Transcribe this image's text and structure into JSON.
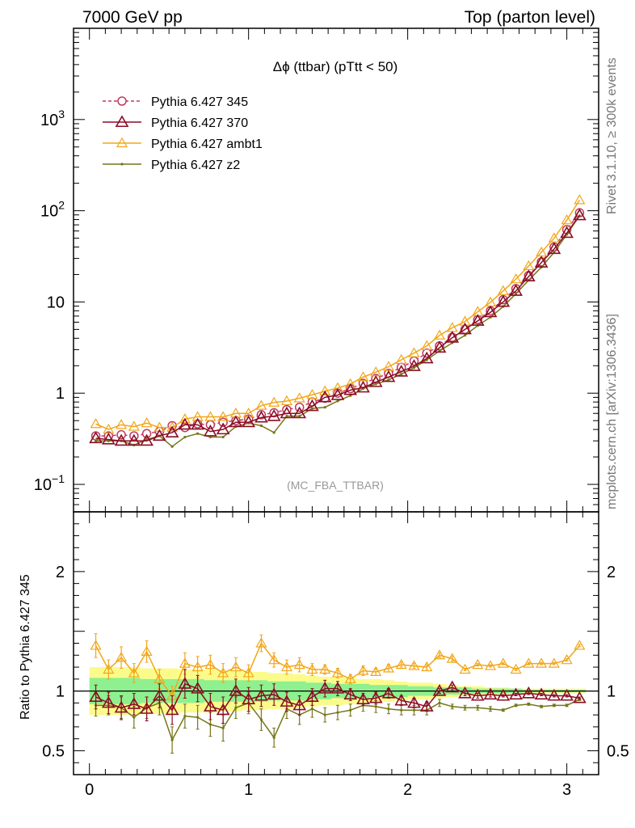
{
  "header": {
    "left": "7000 GeV pp",
    "right": "Top (parton level)"
  },
  "side_labels": {
    "rivet": "Rivet 3.1.10, ≥ 300k events",
    "mcplots": "mcplots.cern.ch [arXiv:1306.3436]"
  },
  "analysis_tag": "(MC_FBA_TTBAR)",
  "colors": {
    "p345": "#c0395f",
    "p370": "#8b0d24",
    "ambt1": "#f2a618",
    "z2": "#76761a",
    "band_yellow": "#fbfb8c",
    "band_green": "#8ef08e"
  },
  "chart_data": [
    {
      "type": "line",
      "title": "Δϕ (ttbar) (pTtt < 50)",
      "xlim": [
        -0.1,
        3.2
      ],
      "ylim": [
        0.05,
        10000
      ],
      "yscale": "log",
      "yticks": [
        {
          "value": 0.1,
          "label": "10",
          "exp": "−1"
        },
        {
          "value": 1,
          "label": "1",
          "exp": ""
        },
        {
          "value": 10,
          "label": "10",
          "exp": ""
        },
        {
          "value": 100,
          "label": "10",
          "exp": "2"
        },
        {
          "value": 1000,
          "label": "10",
          "exp": "3"
        }
      ],
      "legend_position": "top-left",
      "x": [
        0.04,
        0.12,
        0.2,
        0.28,
        0.36,
        0.44,
        0.52,
        0.6,
        0.68,
        0.76,
        0.84,
        0.92,
        1.0,
        1.08,
        1.16,
        1.24,
        1.32,
        1.4,
        1.48,
        1.56,
        1.64,
        1.72,
        1.8,
        1.88,
        1.96,
        2.04,
        2.12,
        2.2,
        2.28,
        2.36,
        2.44,
        2.52,
        2.6,
        2.68,
        2.76,
        2.84,
        2.92,
        3.0,
        3.08
      ],
      "series": [
        {
          "name": "Pythia 6.427 345",
          "key": "p345",
          "marker": "circle",
          "dashed": true,
          "values": [
            0.34,
            0.34,
            0.35,
            0.34,
            0.36,
            0.38,
            0.44,
            0.42,
            0.46,
            0.45,
            0.48,
            0.5,
            0.52,
            0.58,
            0.61,
            0.66,
            0.7,
            0.8,
            0.88,
            1.0,
            1.12,
            1.28,
            1.45,
            1.65,
            1.92,
            2.25,
            2.75,
            3.3,
            4.1,
            5.0,
            6.4,
            8.0,
            10.6,
            14.0,
            19.5,
            27.5,
            40.0,
            62.0,
            95.0
          ]
        },
        {
          "name": "Pythia 6.427 370",
          "key": "p370",
          "marker": "triangle",
          "dashed": false,
          "values": [
            0.32,
            0.31,
            0.3,
            0.3,
            0.3,
            0.34,
            0.37,
            0.45,
            0.45,
            0.38,
            0.4,
            0.48,
            0.48,
            0.54,
            0.56,
            0.6,
            0.6,
            0.72,
            0.9,
            0.95,
            1.08,
            1.15,
            1.32,
            1.5,
            1.72,
            1.98,
            2.4,
            3.15,
            4.05,
            5.0,
            6.2,
            7.7,
            10.0,
            13.2,
            19.0,
            27.0,
            38.0,
            57.0,
            89.0
          ]
        },
        {
          "name": "Pythia 6.427 ambt1",
          "key": "ambt1",
          "marker": "triangle-open",
          "dashed": false,
          "values": [
            0.46,
            0.4,
            0.45,
            0.43,
            0.47,
            0.42,
            0.42,
            0.52,
            0.55,
            0.55,
            0.55,
            0.6,
            0.6,
            0.73,
            0.79,
            0.82,
            0.88,
            0.96,
            1.05,
            1.14,
            1.26,
            1.5,
            1.7,
            1.95,
            2.32,
            2.75,
            3.3,
            4.3,
            5.2,
            6.1,
            7.8,
            9.9,
            13.2,
            17.8,
            24.8,
            35.0,
            50.0,
            79.0,
            131.0
          ]
        },
        {
          "name": "Pythia 6.427 z2",
          "key": "z2",
          "marker": "dot",
          "dashed": false,
          "values": [
            0.3,
            0.3,
            0.3,
            0.27,
            0.31,
            0.34,
            0.26,
            0.33,
            0.36,
            0.33,
            0.33,
            0.43,
            0.47,
            0.44,
            0.37,
            0.56,
            0.56,
            0.68,
            0.7,
            0.82,
            0.94,
            1.12,
            1.26,
            1.4,
            1.62,
            1.9,
            2.32,
            2.9,
            3.56,
            4.3,
            5.5,
            6.8,
            8.9,
            12.3,
            17.3,
            24.0,
            35.0,
            55.0,
            88.0
          ]
        }
      ]
    },
    {
      "type": "line",
      "title": "",
      "ylabel": "Ratio to Pythia 6.427 345",
      "xlim": [
        -0.1,
        3.2
      ],
      "ylim": [
        0.3,
        2.5
      ],
      "xticks": [
        0,
        1,
        2,
        3
      ],
      "yticks": [
        0.5,
        1,
        2
      ],
      "x": [
        0.04,
        0.12,
        0.2,
        0.28,
        0.36,
        0.44,
        0.52,
        0.6,
        0.68,
        0.76,
        0.84,
        0.92,
        1.0,
        1.08,
        1.16,
        1.24,
        1.32,
        1.4,
        1.48,
        1.56,
        1.64,
        1.72,
        1.8,
        1.88,
        1.96,
        2.04,
        2.12,
        2.2,
        2.28,
        2.36,
        2.44,
        2.52,
        2.6,
        2.68,
        2.76,
        2.84,
        2.92,
        3.0,
        3.08
      ],
      "bands": {
        "yellow_half_width": [
          0.2,
          0.2,
          0.2,
          0.2,
          0.19,
          0.19,
          0.19,
          0.18,
          0.18,
          0.18,
          0.17,
          0.17,
          0.16,
          0.16,
          0.15,
          0.15,
          0.14,
          0.13,
          0.12,
          0.12,
          0.11,
          0.1,
          0.1,
          0.09,
          0.08,
          0.07,
          0.07,
          0.06,
          0.05,
          0.04,
          0.04,
          0.03,
          0.03,
          0.02,
          0.02,
          0.02,
          0.02,
          0.02,
          0.02
        ],
        "green_half_width": [
          0.11,
          0.11,
          0.11,
          0.11,
          0.1,
          0.1,
          0.1,
          0.1,
          0.1,
          0.09,
          0.09,
          0.09,
          0.09,
          0.09,
          0.08,
          0.08,
          0.08,
          0.07,
          0.07,
          0.06,
          0.06,
          0.06,
          0.05,
          0.05,
          0.05,
          0.04,
          0.04,
          0.03,
          0.03,
          0.03,
          0.02,
          0.02,
          0.02,
          0.02,
          0.01,
          0.01,
          0.01,
          0.01,
          0.01
        ]
      },
      "series": [
        {
          "name": "Pythia 6.427 370",
          "key": "p370",
          "marker": "triangle",
          "values": [
            0.95,
            0.9,
            0.86,
            0.89,
            0.85,
            0.96,
            0.84,
            1.06,
            1.02,
            0.87,
            0.84,
            1.0,
            0.93,
            0.96,
            0.97,
            0.91,
            0.88,
            0.95,
            1.02,
            1.02,
            0.97,
            0.93,
            0.94,
            0.98,
            0.92,
            0.9,
            0.87,
            1.0,
            1.03,
            0.98,
            0.96,
            0.97,
            0.96,
            0.97,
            0.98,
            0.97,
            0.96,
            0.96,
            0.94
          ],
          "err": [
            0.1,
            0.09,
            0.1,
            0.09,
            0.1,
            0.1,
            0.12,
            0.12,
            0.11,
            0.11,
            0.11,
            0.1,
            0.1,
            0.09,
            0.09,
            0.08,
            0.08,
            0.07,
            0.07,
            0.06,
            0.05,
            0.05,
            0.05,
            0.04,
            0.04,
            0.04,
            0.04,
            0.02,
            0.02,
            0.02,
            0.02,
            0.02,
            0.01,
            0.01,
            0.01,
            0.01,
            0.01,
            0.01,
            0.01
          ]
        },
        {
          "name": "Pythia 6.427 ambt1",
          "key": "ambt1",
          "marker": "triangle-open",
          "values": [
            1.38,
            1.18,
            1.28,
            1.15,
            1.33,
            1.1,
            0.96,
            1.23,
            1.2,
            1.22,
            1.15,
            1.2,
            1.15,
            1.4,
            1.26,
            1.2,
            1.22,
            1.18,
            1.18,
            1.15,
            1.1,
            1.17,
            1.16,
            1.19,
            1.22,
            1.21,
            1.2,
            1.3,
            1.27,
            1.18,
            1.22,
            1.21,
            1.23,
            1.18,
            1.23,
            1.23,
            1.23,
            1.26,
            1.38
          ],
          "err": [
            0.1,
            0.08,
            0.09,
            0.08,
            0.09,
            0.08,
            0.08,
            0.09,
            0.09,
            0.08,
            0.08,
            0.08,
            0.07,
            0.07,
            0.06,
            0.06,
            0.06,
            0.05,
            0.04,
            0.04,
            0.04,
            0.04,
            0.03,
            0.03,
            0.02,
            0.02,
            0.02,
            0.02,
            0.02,
            0.01,
            0.01,
            0.01,
            0.01,
            0.01,
            0.01,
            0.01,
            0.01,
            0.01,
            0.01
          ]
        },
        {
          "name": "Pythia 6.427 z2",
          "key": "z2",
          "marker": "dot",
          "values": [
            0.88,
            0.88,
            0.86,
            0.78,
            0.86,
            0.9,
            0.59,
            0.79,
            0.78,
            0.72,
            0.69,
            0.86,
            0.9,
            0.76,
            0.61,
            0.85,
            0.8,
            0.85,
            0.8,
            0.82,
            0.84,
            0.88,
            0.87,
            0.85,
            0.84,
            0.84,
            0.84,
            0.9,
            0.87,
            0.86,
            0.86,
            0.85,
            0.84,
            0.88,
            0.89,
            0.87,
            0.88,
            0.88,
            0.93
          ],
          "err": [
            0.09,
            0.08,
            0.09,
            0.09,
            0.09,
            0.1,
            0.11,
            0.1,
            0.1,
            0.1,
            0.11,
            0.09,
            0.09,
            0.09,
            0.08,
            0.08,
            0.08,
            0.07,
            0.06,
            0.06,
            0.05,
            0.05,
            0.05,
            0.04,
            0.04,
            0.04,
            0.04,
            0.03,
            0.02,
            0.02,
            0.02,
            0.02,
            0.01,
            0.01,
            0.01,
            0.01,
            0.01,
            0.01,
            0.01
          ]
        }
      ]
    }
  ]
}
